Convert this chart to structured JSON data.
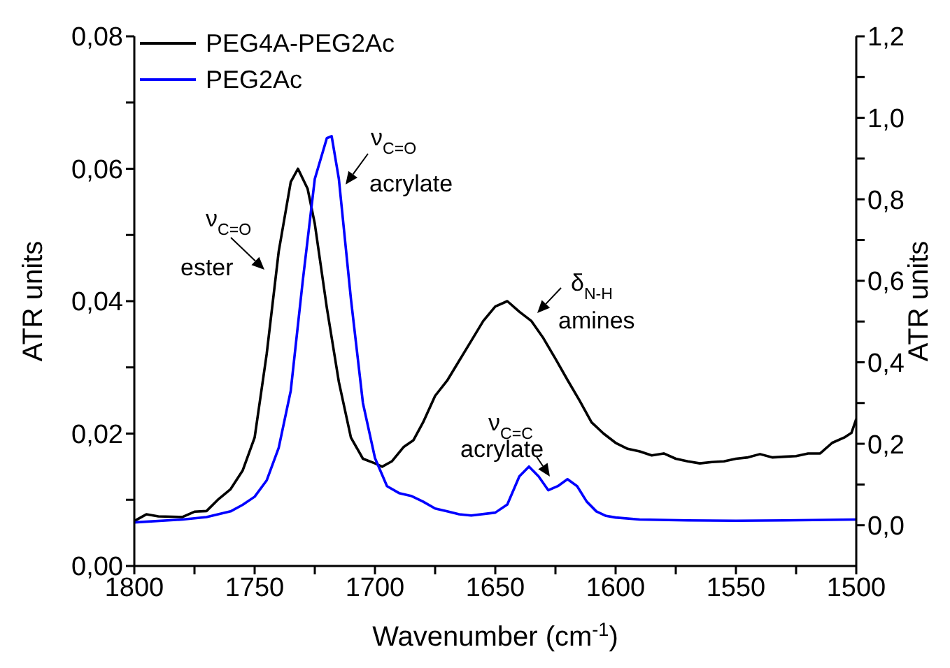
{
  "chart_data": {
    "type": "line",
    "xlabel": "Wavenumber (cm$^{-1}$)",
    "ylabel": "ATR units",
    "y2label": "ATR units",
    "xlim": [
      1800,
      1500
    ],
    "xticks": [
      1800,
      {
        "value": 1775,
        "label": null
      },
      1750,
      {
        "value": 1725,
        "label": null
      },
      1700,
      {
        "value": 1675,
        "label": null
      },
      1650,
      {
        "value": 1625,
        "label": null
      },
      1600,
      {
        "value": 1575,
        "label": null
      },
      1550,
      {
        "value": 1525,
        "label": null
      },
      1500
    ],
    "ylim": [
      0,
      0.08
    ],
    "yticks": [
      {
        "value": 0,
        "label": "0,00"
      },
      {
        "value": 0.01,
        "label": null
      },
      {
        "value": 0.02,
        "label": "0,02"
      },
      {
        "value": 0.03,
        "label": null
      },
      {
        "value": 0.04,
        "label": "0,04"
      },
      {
        "value": 0.05,
        "label": null
      },
      {
        "value": 0.06,
        "label": "0,06"
      },
      {
        "value": 0.07,
        "label": null
      },
      {
        "value": 0.08,
        "label": "0,08"
      }
    ],
    "y2lim": [
      -0.1,
      1.2
    ],
    "y2ticks": [
      {
        "value": 0,
        "label": "0,0"
      },
      {
        "value": 0.1,
        "label": null
      },
      {
        "value": 0.2,
        "label": "0,2"
      },
      {
        "value": 0.3,
        "label": null
      },
      {
        "value": 0.4,
        "label": "0,4"
      },
      {
        "value": 0.5,
        "label": null
      },
      {
        "value": 0.6,
        "label": "0,6"
      },
      {
        "value": 0.7,
        "label": null
      },
      {
        "value": 0.8,
        "label": "0,8"
      },
      {
        "value": 0.9,
        "label": null
      },
      {
        "value": 1.0,
        "label": "1,0"
      },
      {
        "value": 1.1,
        "label": null
      },
      {
        "value": 1.2,
        "label": "1,2"
      }
    ],
    "legend": "top left",
    "series": [
      {
        "name": "PEG4A-PEG2Ac",
        "color": "#000000",
        "x": [
          1800,
          1795,
          1790,
          1780,
          1775,
          1770,
          1765,
          1760,
          1755,
          1750,
          1745,
          1740,
          1735,
          1732,
          1728,
          1725,
          1720,
          1715,
          1710,
          1705,
          1700,
          1697,
          1693,
          1688,
          1684,
          1680,
          1675,
          1670,
          1665,
          1660,
          1655,
          1650,
          1645,
          1640,
          1635,
          1630,
          1625,
          1620,
          1615,
          1610,
          1605,
          1600,
          1595,
          1590,
          1585,
          1580,
          1575,
          1570,
          1565,
          1560,
          1555,
          1550,
          1545,
          1540,
          1535,
          1530,
          1525,
          1520,
          1515,
          1510,
          1505,
          1502,
          1500
        ],
        "values": [
          0.0068,
          0.0078,
          0.0075,
          0.0074,
          0.0082,
          0.0083,
          0.0101,
          0.0116,
          0.0144,
          0.0194,
          0.032,
          0.0475,
          0.058,
          0.06,
          0.057,
          0.0517,
          0.039,
          0.0278,
          0.0194,
          0.0162,
          0.0155,
          0.015,
          0.0158,
          0.018,
          0.019,
          0.0217,
          0.0257,
          0.028,
          0.031,
          0.034,
          0.037,
          0.0392,
          0.04,
          0.0384,
          0.037,
          0.0344,
          0.0313,
          0.0281,
          0.025,
          0.0217,
          0.02,
          0.0186,
          0.0177,
          0.0173,
          0.0167,
          0.017,
          0.0162,
          0.0158,
          0.0155,
          0.0157,
          0.0158,
          0.0162,
          0.0164,
          0.0169,
          0.0164,
          0.0165,
          0.0166,
          0.017,
          0.017,
          0.0186,
          0.0194,
          0.0201,
          0.0222
        ]
      },
      {
        "name": "PEG2Ac",
        "color": "#0000ff",
        "axis": "y2",
        "x": [
          1800,
          1780,
          1770,
          1760,
          1755,
          1750,
          1745,
          1740,
          1735,
          1730,
          1725,
          1720,
          1718,
          1715,
          1710,
          1705,
          1700,
          1695,
          1690,
          1685,
          1680,
          1675,
          1670,
          1665,
          1660,
          1650,
          1645,
          1640,
          1636,
          1632,
          1628,
          1624,
          1620,
          1616,
          1612,
          1608,
          1604,
          1600,
          1590,
          1570,
          1550,
          1530,
          1500
        ],
        "values": [
          0.007,
          0.014,
          0.02,
          0.034,
          0.05,
          0.07,
          0.11,
          0.19,
          0.33,
          0.6,
          0.85,
          0.95,
          0.955,
          0.85,
          0.556,
          0.3,
          0.165,
          0.096,
          0.079,
          0.072,
          0.058,
          0.041,
          0.034,
          0.027,
          0.024,
          0.031,
          0.051,
          0.12,
          0.144,
          0.12,
          0.086,
          0.096,
          0.113,
          0.096,
          0.058,
          0.034,
          0.023,
          0.019,
          0.014,
          0.012,
          0.011,
          0.012,
          0.014
        ]
      }
    ],
    "annotations": [
      "ν$_{C=O}$\nester",
      "ν$_{C=O}$\nacrylate",
      "δ$_{N-H}$\namines",
      "ν$_{C=C}$\nacrylate"
    ]
  }
}
